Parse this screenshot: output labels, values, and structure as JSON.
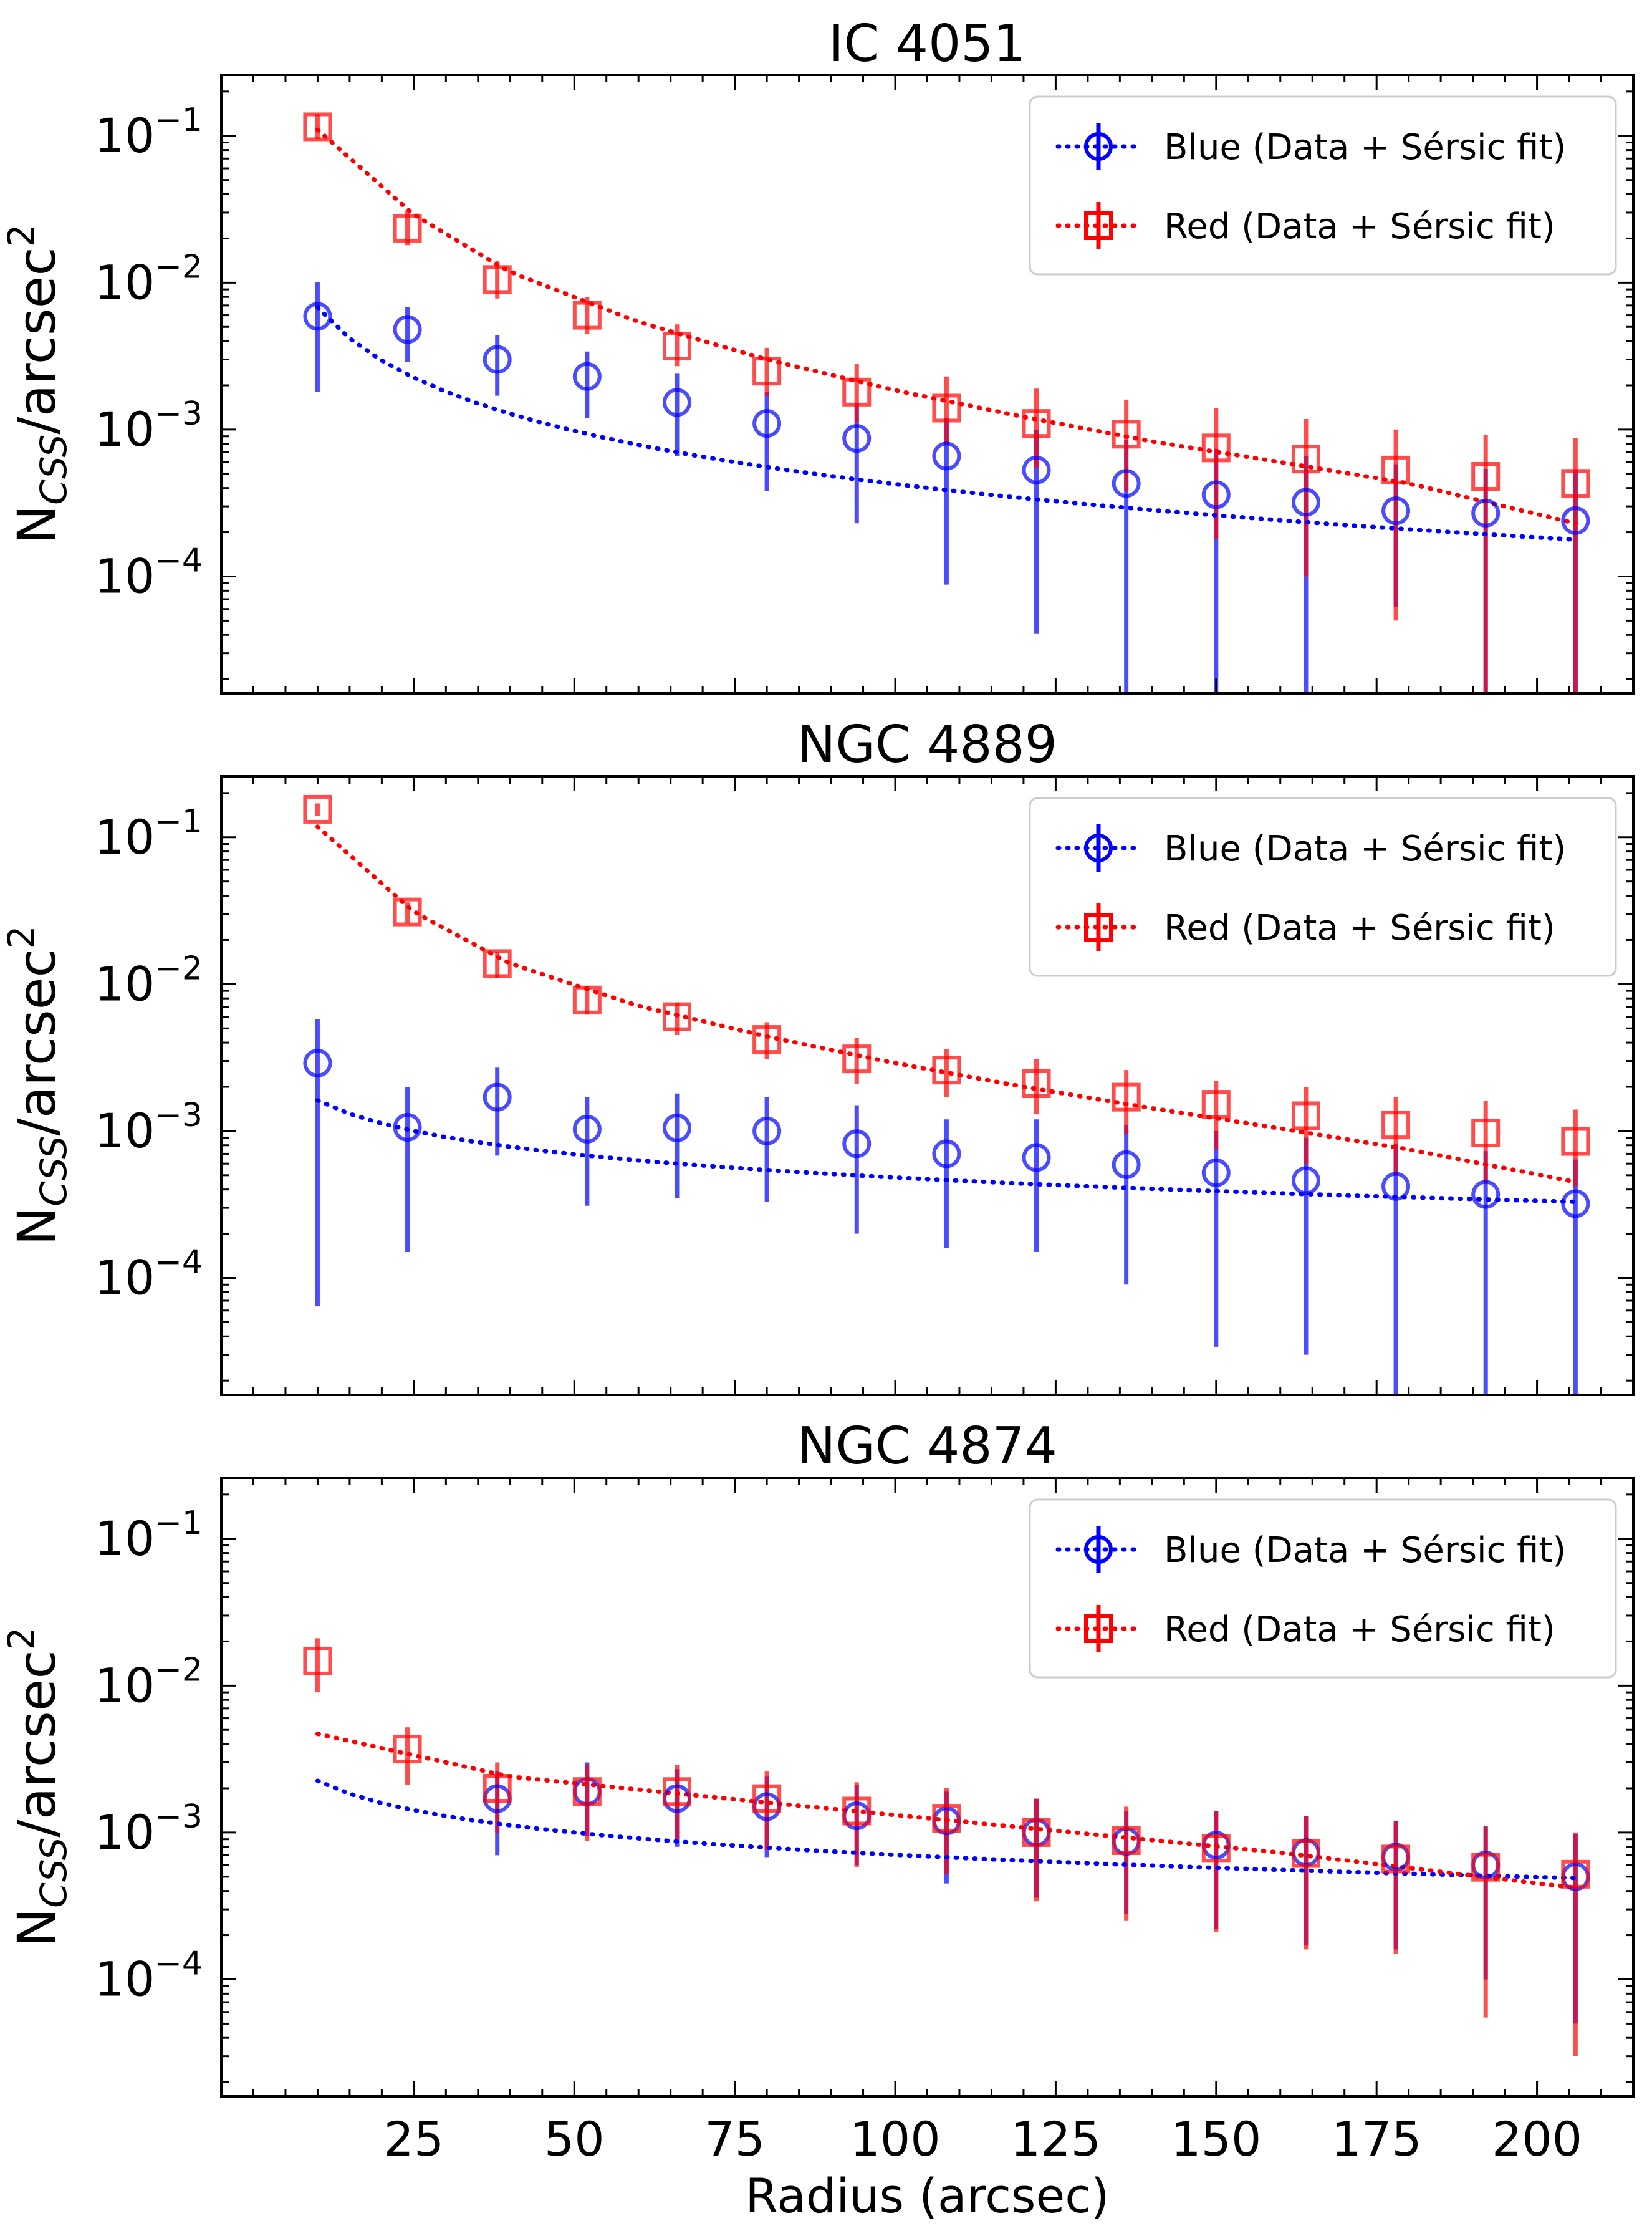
{
  "chart_data": [
    {
      "type": "scatter",
      "title": "IC 4051",
      "ylabel": "N_CSS/arcsec^2",
      "ylabel_parts": {
        "main": "N",
        "sub": "CSS",
        "rest": "/arcsec",
        "sup": "2"
      },
      "xlabel": "",
      "xlim": [
        -5,
        215
      ],
      "ylim": [
        1.6e-05,
        0.26
      ],
      "yscale": "log",
      "yticks": [
        {
          "value": 0.1,
          "base": "10",
          "exp": "−1"
        },
        {
          "value": 0.01,
          "base": "10",
          "exp": "−2"
        },
        {
          "value": 0.001,
          "base": "10",
          "exp": "−3"
        },
        {
          "value": 0.0001,
          "base": "10",
          "exp": "−4"
        }
      ],
      "legend": {
        "position": "upper right",
        "entries": [
          "Blue (Data + Sérsic fit)",
          "Red (Data + Sérsic fit)"
        ]
      },
      "series": [
        {
          "name": "Blue (Data + Sérsic fit)",
          "color": "#0000ff",
          "marker": "circle",
          "x": [
            10,
            24,
            38,
            52,
            66,
            80,
            94,
            108,
            122,
            136,
            150,
            164,
            178,
            192,
            206
          ],
          "y": [
            0.0059,
            0.0048,
            0.003,
            0.0023,
            0.00153,
            0.0011,
            0.00087,
            0.00066,
            0.00053,
            0.00043,
            0.00036,
            0.00032,
            0.00028,
            0.00027,
            0.00024
          ],
          "err_low": [
            0.0018,
            0.0029,
            0.0017,
            0.0012,
            0.00066,
            0.00038,
            0.00023,
            8.8e-05,
            4.1e-05,
            1.6e-05,
            1.6e-05,
            1.6e-05,
            6.2e-05,
            1.6e-05,
            1.6e-05
          ],
          "err_high": [
            0.0101,
            0.0068,
            0.0044,
            0.0034,
            0.0024,
            0.0018,
            0.0015,
            0.0012,
            0.001,
            0.00085,
            0.00074,
            0.00066,
            0.00058,
            0.00054,
            0.00052
          ],
          "fit_x": [
            10,
            206
          ],
          "fit_y": [
            0.0068,
            0.000178
          ],
          "fit_type": "powerlaw"
        },
        {
          "name": "Red (Data + Sérsic fit)",
          "color": "#ff0000",
          "marker": "square",
          "x": [
            10,
            24,
            38,
            52,
            66,
            80,
            94,
            108,
            122,
            136,
            150,
            164,
            178,
            192,
            206
          ],
          "y": [
            0.115,
            0.0235,
            0.0105,
            0.006,
            0.0037,
            0.0025,
            0.0018,
            0.0014,
            0.0011,
            0.00093,
            0.00075,
            0.00063,
            0.00053,
            0.00048,
            0.00043
          ],
          "err_low": [
            0.095,
            0.018,
            0.0078,
            0.0045,
            0.0027,
            0.0017,
            0.0011,
            0.0008,
            0.00055,
            0.00038,
            0.00018,
            0.0001,
            5e-05,
            1.6e-05,
            1.6e-05
          ],
          "err_high": [
            0.14,
            0.031,
            0.014,
            0.008,
            0.0052,
            0.0036,
            0.0028,
            0.0023,
            0.0019,
            0.0016,
            0.0014,
            0.00118,
            0.001,
            0.00092,
            0.00088
          ],
          "fit_x": [
            10,
            25,
            40,
            60,
            80,
            100,
            120,
            140,
            160,
            180,
            206
          ],
          "fit_y": [
            0.11,
            0.029,
            0.0118,
            0.0054,
            0.003,
            0.00185,
            0.00122,
            0.00083,
            0.0006,
            0.00043,
            0.00023
          ],
          "fit_type": "sersic"
        }
      ]
    },
    {
      "type": "scatter",
      "title": "NGC 4889",
      "ylabel": "N_CSS/arcsec^2",
      "ylabel_parts": {
        "main": "N",
        "sub": "CSS",
        "rest": "/arcsec",
        "sup": "2"
      },
      "xlabel": "",
      "xlim": [
        -5,
        215
      ],
      "ylim": [
        1.6e-05,
        0.26
      ],
      "yscale": "log",
      "yticks": [
        {
          "value": 0.1,
          "base": "10",
          "exp": "−1"
        },
        {
          "value": 0.01,
          "base": "10",
          "exp": "−2"
        },
        {
          "value": 0.001,
          "base": "10",
          "exp": "−3"
        },
        {
          "value": 0.0001,
          "base": "10",
          "exp": "−4"
        }
      ],
      "legend": {
        "position": "upper right",
        "entries": [
          "Blue (Data + Sérsic fit)",
          "Red (Data + Sérsic fit)"
        ]
      },
      "series": [
        {
          "name": "Blue (Data + Sérsic fit)",
          "color": "#0000ff",
          "marker": "circle",
          "x": [
            10,
            24,
            38,
            52,
            66,
            80,
            94,
            108,
            122,
            136,
            150,
            164,
            178,
            192,
            206
          ],
          "y": [
            0.0029,
            0.00106,
            0.0017,
            0.00103,
            0.00105,
            0.001,
            0.00082,
            0.0007,
            0.00066,
            0.00059,
            0.00052,
            0.00046,
            0.00042,
            0.00037,
            0.00032
          ],
          "err_low": [
            6.4e-05,
            0.00015,
            0.00068,
            0.00031,
            0.00035,
            0.00033,
            0.0002,
            0.00016,
            0.00015,
            9e-05,
            3.4e-05,
            3e-05,
            1.6e-05,
            1.6e-05,
            1.6e-05
          ],
          "err_high": [
            0.0058,
            0.002,
            0.0027,
            0.0017,
            0.0018,
            0.0017,
            0.0015,
            0.0012,
            0.0012,
            0.0011,
            0.001,
            0.0009,
            0.00082,
            0.00073,
            0.00064
          ],
          "fit_x": [
            10,
            206
          ],
          "fit_y": [
            0.00162,
            0.00033
          ],
          "fit_type": "powerlaw"
        },
        {
          "name": "Red (Data + Sérsic fit)",
          "color": "#ff0000",
          "marker": "square",
          "x": [
            10,
            24,
            38,
            52,
            66,
            80,
            94,
            108,
            122,
            136,
            150,
            164,
            178,
            192,
            206
          ],
          "y": [
            0.155,
            0.031,
            0.0138,
            0.0078,
            0.006,
            0.0042,
            0.0031,
            0.0026,
            0.0021,
            0.0017,
            0.00152,
            0.00127,
            0.0011,
            0.00097,
            0.00085
          ],
          "err_low": [
            0.14,
            0.026,
            0.011,
            0.0062,
            0.0045,
            0.0031,
            0.0021,
            0.0017,
            0.0013,
            0.00095,
            0.00075,
            0.0006,
            0.0005,
            0.00045,
            0.00042
          ],
          "err_high": [
            0.17,
            0.036,
            0.0165,
            0.0097,
            0.0075,
            0.0055,
            0.0043,
            0.0036,
            0.0031,
            0.0026,
            0.0022,
            0.002,
            0.0017,
            0.0016,
            0.0014
          ],
          "fit_x": [
            10,
            25,
            40,
            60,
            80,
            100,
            120,
            140,
            160,
            180,
            206
          ],
          "fit_y": [
            0.118,
            0.031,
            0.0138,
            0.0071,
            0.0044,
            0.0029,
            0.002,
            0.00143,
            0.00104,
            0.00075,
            0.00045
          ],
          "fit_type": "sersic"
        }
      ]
    },
    {
      "type": "scatter",
      "title": "NGC 4874",
      "ylabel": "N_CSS/arcsec^2",
      "ylabel_parts": {
        "main": "N",
        "sub": "CSS",
        "rest": "/arcsec",
        "sup": "2"
      },
      "xlabel": "Radius (arcsec)",
      "xlim": [
        -5,
        215
      ],
      "xticks": [
        25,
        50,
        75,
        100,
        125,
        150,
        175,
        200
      ],
      "ylim": [
        1.6e-05,
        0.26
      ],
      "yscale": "log",
      "yticks": [
        {
          "value": 0.1,
          "base": "10",
          "exp": "−1"
        },
        {
          "value": 0.01,
          "base": "10",
          "exp": "−2"
        },
        {
          "value": 0.001,
          "base": "10",
          "exp": "−3"
        },
        {
          "value": 0.0001,
          "base": "10",
          "exp": "−4"
        }
      ],
      "legend": {
        "position": "upper right",
        "entries": [
          "Blue (Data + Sérsic fit)",
          "Red (Data + Sérsic fit)"
        ]
      },
      "series": [
        {
          "name": "Blue (Data + Sérsic fit)",
          "color": "#0000ff",
          "marker": "circle",
          "x": [
            38,
            52,
            66,
            80,
            94,
            108,
            122,
            136,
            150,
            164,
            178,
            192,
            206
          ],
          "y": [
            0.0017,
            0.0019,
            0.0017,
            0.0015,
            0.0013,
            0.0012,
            0.001,
            0.00087,
            0.00082,
            0.00073,
            0.00068,
            0.0006,
            0.0005
          ],
          "err_low": [
            0.0007,
            0.00095,
            0.0008,
            0.00068,
            0.0006,
            0.00045,
            0.00036,
            0.00028,
            0.00022,
            0.00017,
            0.00016,
            0.0001,
            5e-05
          ],
          "err_high": [
            0.0026,
            0.003,
            0.0027,
            0.0024,
            0.0021,
            0.0019,
            0.0017,
            0.0014,
            0.0014,
            0.0013,
            0.0012,
            0.0011,
            0.00098
          ],
          "fit_x": [
            10,
            206
          ],
          "fit_y": [
            0.00225,
            0.00049
          ],
          "fit_type": "powerlaw"
        },
        {
          "name": "Red (Data + Sérsic fit)",
          "color": "#ff0000",
          "marker": "square",
          "x": [
            10,
            24,
            38,
            52,
            66,
            80,
            94,
            108,
            122,
            136,
            150,
            164,
            178,
            192,
            206
          ],
          "y": [
            0.0147,
            0.0037,
            0.002,
            0.0019,
            0.0019,
            0.0017,
            0.0014,
            0.00125,
            0.001,
            0.00088,
            0.00078,
            0.00072,
            0.00066,
            0.00058,
            0.00052
          ],
          "err_low": [
            0.009,
            0.0021,
            0.001,
            0.00088,
            0.0009,
            0.00076,
            0.00058,
            0.00052,
            0.00034,
            0.00025,
            0.00021,
            0.00016,
            0.00015,
            5.5e-05,
            3e-05
          ],
          "err_high": [
            0.021,
            0.0052,
            0.003,
            0.0029,
            0.0029,
            0.0026,
            0.0022,
            0.002,
            0.0017,
            0.0015,
            0.0014,
            0.0013,
            0.0012,
            0.0011,
            0.001
          ],
          "fit_x": [
            10,
            40,
            80,
            120,
            160,
            206
          ],
          "fit_y": [
            0.0047,
            0.0024,
            0.0016,
            0.00108,
            0.00073,
            0.00042
          ],
          "fit_type": "sersic"
        }
      ]
    }
  ]
}
